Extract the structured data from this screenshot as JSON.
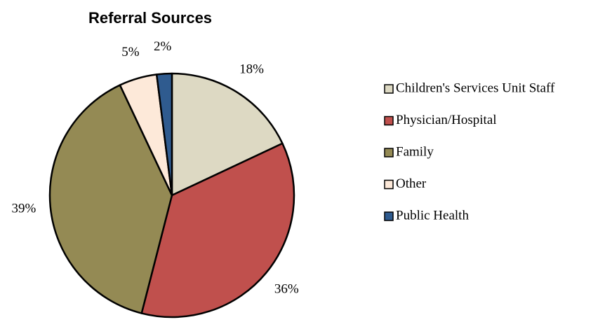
{
  "chart_data": {
    "type": "pie",
    "title": "Referral Sources",
    "categories": [
      "Children's Services Unit Staff",
      "Physician/Hospital",
      "Family",
      "Other",
      "Public Health"
    ],
    "values": [
      18,
      36,
      39,
      5,
      2
    ],
    "value_labels": [
      "18%",
      "36%",
      "39%",
      "5%",
      "2%"
    ],
    "colors": [
      "#ddd9c3",
      "#c0504d",
      "#948a54",
      "#fde9d9",
      "#2f5b8f"
    ],
    "legend": "right"
  }
}
